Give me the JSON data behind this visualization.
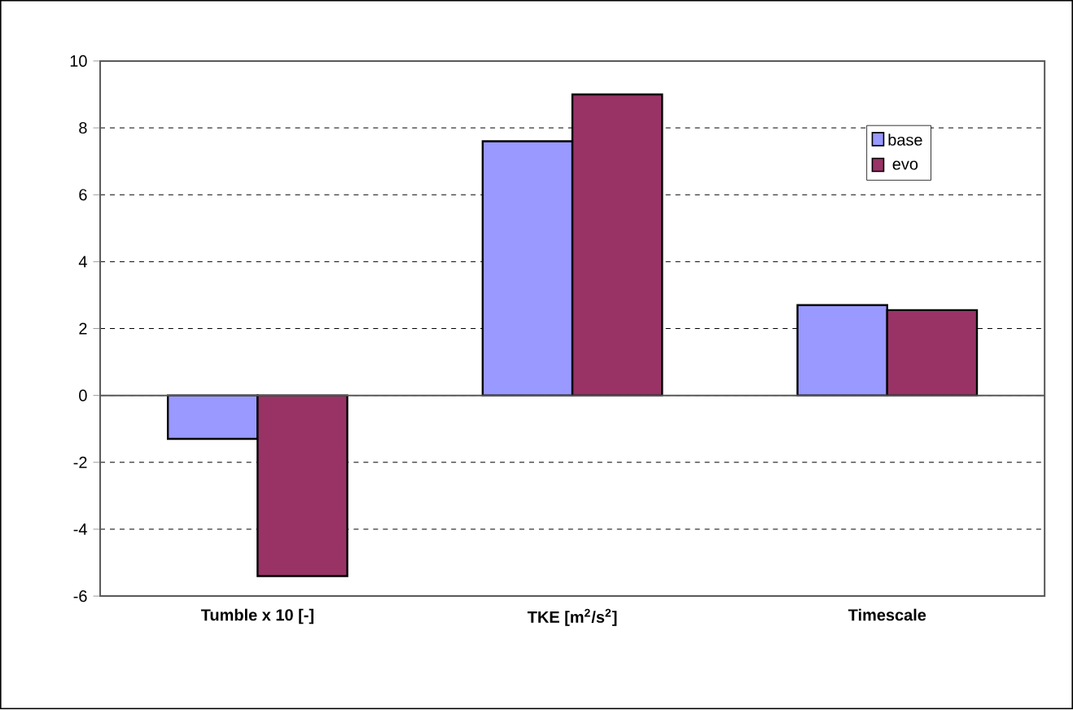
{
  "chart_data": {
    "type": "bar",
    "categories": [
      "Tumble x 10 [-]",
      "TKE [m$^{2}$/s$^{2}$]",
      "Timescale"
    ],
    "series": [
      {
        "name": "base",
        "color": "#9999ff",
        "values": [
          -1.3,
          7.6,
          2.7
        ]
      },
      {
        "name": "evo",
        "color": "#993366",
        "values": [
          -5.4,
          9.0,
          2.55
        ]
      }
    ],
    "ylim": [
      -6,
      10
    ],
    "yticks": [
      -6,
      -4,
      -2,
      0,
      2,
      4,
      6,
      8,
      10
    ],
    "grid": "y",
    "legend": "top right"
  }
}
